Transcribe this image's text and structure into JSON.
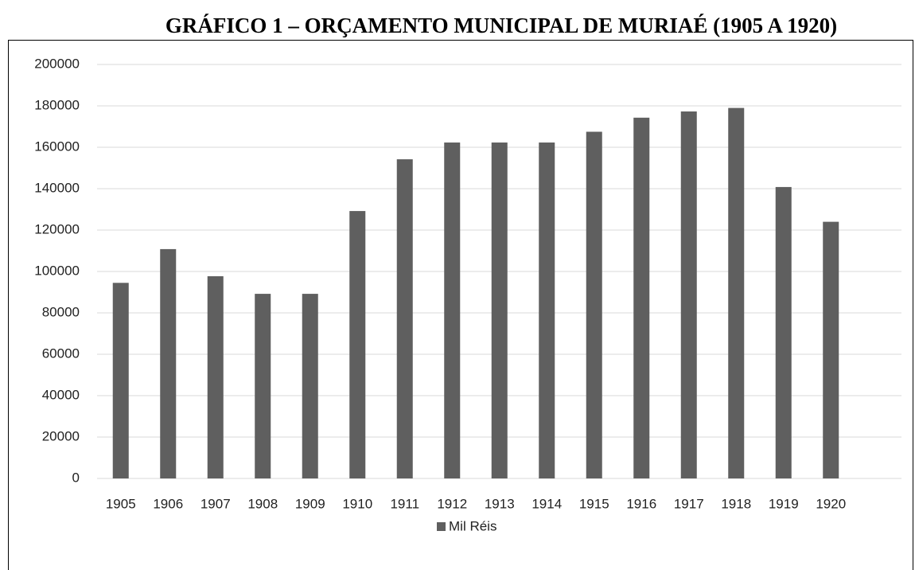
{
  "chart_data": {
    "type": "bar",
    "title": "GRÁFICO 1 – ORÇAMENTO MUNICIPAL DE MURIAÉ (1905 A 1920)",
    "categories": [
      "1905",
      "1906",
      "1907",
      "1908",
      "1909",
      "1910",
      "1911",
      "1912",
      "1913",
      "1914",
      "1915",
      "1916",
      "1917",
      "1918",
      "1919",
      "1920"
    ],
    "series": [
      {
        "name": "Mil Réis",
        "color": "#5f5f5f",
        "values": [
          94500,
          110800,
          97700,
          89200,
          89200,
          129200,
          154200,
          162300,
          162300,
          162300,
          167500,
          174300,
          177300,
          179000,
          140800,
          124000
        ]
      }
    ],
    "ylim": [
      0,
      200000
    ],
    "yticks": [
      0,
      20000,
      40000,
      60000,
      80000,
      100000,
      120000,
      140000,
      160000,
      180000,
      200000
    ],
    "grid": true,
    "legend": "bottom"
  }
}
